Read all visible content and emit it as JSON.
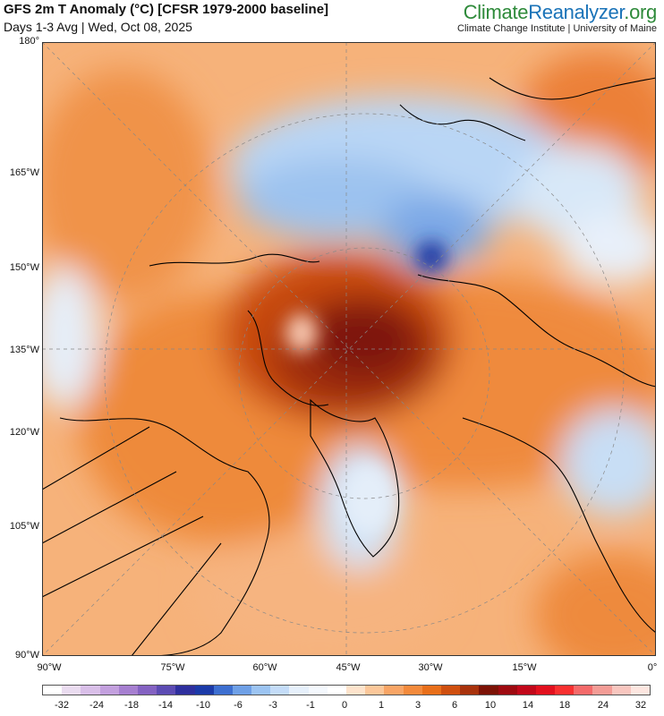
{
  "header": {
    "title": "GFS 2m T Anomaly (°C) [CFSR 1979-2000 baseline]",
    "subtitle": "Days 1-3 Avg | Wed, Oct 08, 2025",
    "brand_part1": "Climate",
    "brand_part2": "Reanalyzer",
    "brand_part3": ".org",
    "org": "Climate Change Institute | University of Maine"
  },
  "map": {
    "projection": "polar-stereographic",
    "gridlines": "dashed",
    "y_axis_labels": [
      "180°",
      "165°W",
      "150°W",
      "135°W",
      "120°W",
      "105°W",
      "90°W"
    ],
    "x_axis_labels": [
      "90°W",
      "75°W",
      "60°W",
      "45°W",
      "30°W",
      "15°W",
      "0°"
    ]
  },
  "colorbar": {
    "labels": [
      "-32",
      "-24",
      "-18",
      "-14",
      "-10",
      "-6",
      "-3",
      "-1",
      "0",
      "1",
      "3",
      "6",
      "10",
      "14",
      "18",
      "24",
      "32"
    ],
    "colors": [
      "#ffffff",
      "#eadcf0",
      "#d9bfe8",
      "#c3a0de",
      "#a67fd0",
      "#8462c2",
      "#5c4bb3",
      "#2e2f9e",
      "#1b3aa8",
      "#3d6fd0",
      "#6fa0e6",
      "#9cc4f2",
      "#c4dcf8",
      "#e6f0fb",
      "#f4f8fd",
      "#ffffff",
      "#fde3cc",
      "#fbc79a",
      "#f8a566",
      "#f38a3c",
      "#e86f1a",
      "#cf4f0f",
      "#a8320c",
      "#7c1206",
      "#9e0a10",
      "#c2081a",
      "#e2101e",
      "#f83030",
      "#f46a6a",
      "#f39c96",
      "#f8c6bf",
      "#fde6e0"
    ]
  }
}
